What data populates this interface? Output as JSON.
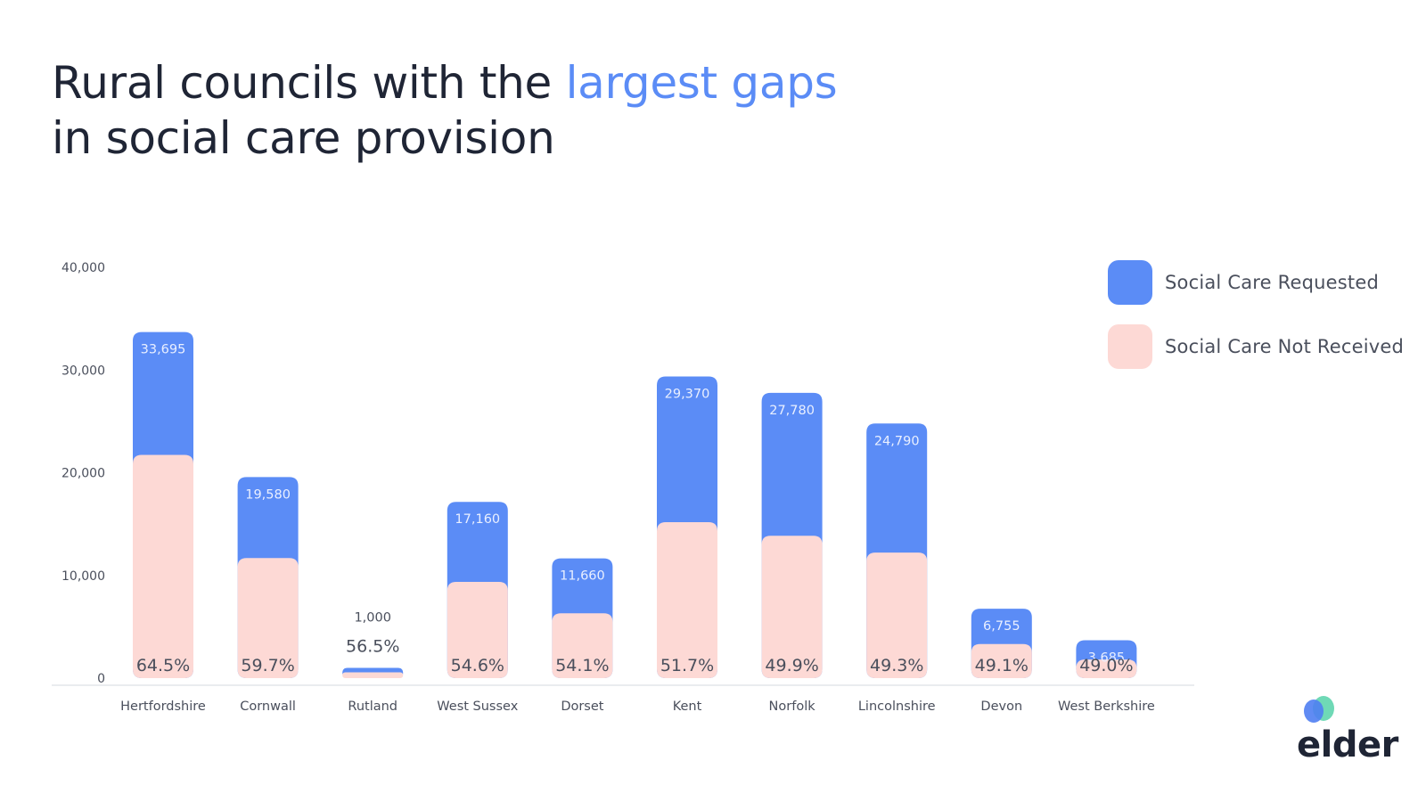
{
  "title": {
    "line1_prefix": "Rural councils with the ",
    "line1_accent": "largest gaps",
    "line2": "in social care provision"
  },
  "colors": {
    "requested": "#5b8cf6",
    "not_received": "#fdd9d5",
    "title": "#1f2535",
    "accent": "#5b8cf6",
    "axis_text": "#4a4f5c",
    "logo_blue": "#4f7ef2",
    "logo_teal": "#5fd5ae"
  },
  "legend": [
    {
      "label": "Social Care Requested",
      "color": "#5b8cf6"
    },
    {
      "label": "Social Care Not Received",
      "color": "#fdd9d5"
    }
  ],
  "logo": {
    "text": "elder"
  },
  "chart_data": {
    "type": "bar",
    "categories": [
      "Hertfordshire",
      "Cornwall",
      "Rutland",
      "West Sussex",
      "Dorset",
      "Kent",
      "Norfolk",
      "Lincolnshire",
      "Devon",
      "West Berkshire"
    ],
    "series": [
      {
        "name": "Social Care Requested",
        "values": [
          33695,
          19580,
          1000,
          17160,
          11660,
          29370,
          27780,
          24790,
          6755,
          3685
        ]
      },
      {
        "name": "Social Care Not Received",
        "values": [
          21733,
          11689,
          565,
          9369,
          6308,
          15184,
          13862,
          12221,
          3317,
          1806
        ]
      }
    ],
    "value_labels": [
      "33,695",
      "19,580",
      "1,000",
      "17,160",
      "11,660",
      "29,370",
      "27,780",
      "24,790",
      "6,755",
      "3,685"
    ],
    "percent_labels": [
      "64.5%",
      "59.7%",
      "56.5%",
      "54.6%",
      "54.1%",
      "51.7%",
      "49.9%",
      "49.3%",
      "49.1%",
      "49.0%"
    ],
    "y_ticks": [
      "0",
      "10,000",
      "20,000",
      "30,000",
      "40,000"
    ],
    "ylim": [
      0,
      40000
    ],
    "grid": false,
    "legend_position": "top-right"
  }
}
